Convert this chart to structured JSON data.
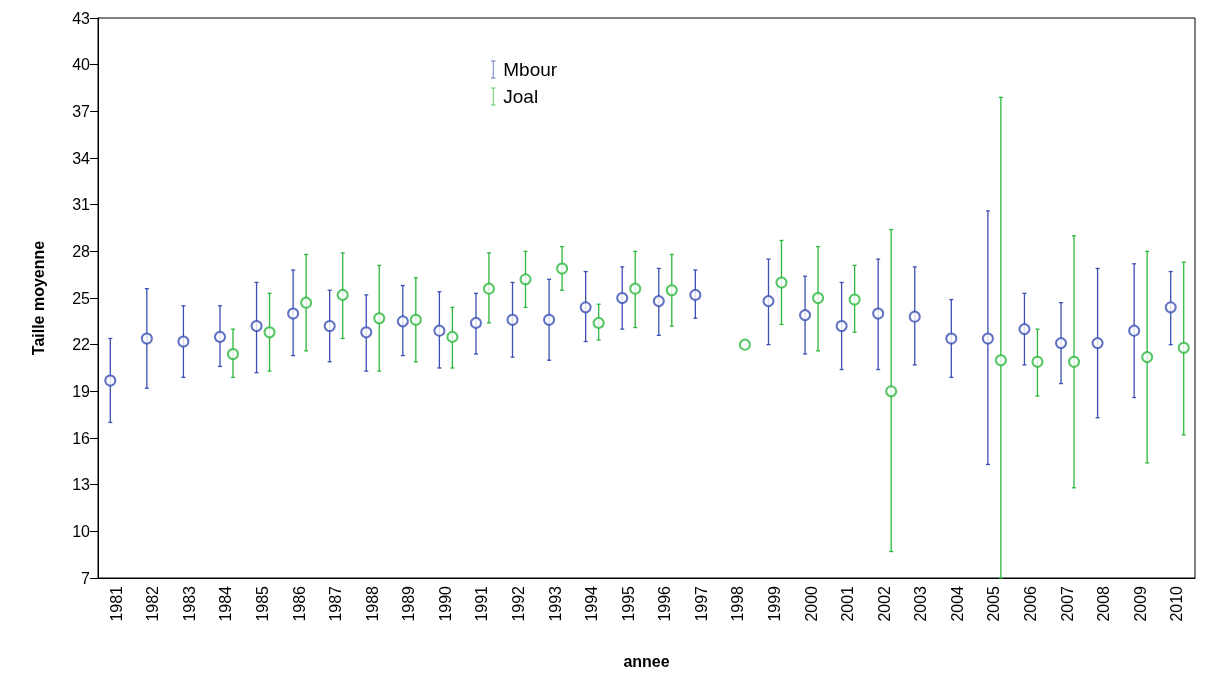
{
  "chart_data": {
    "type": "scatter",
    "xlabel": "annee",
    "ylabel": "Taille moyenne",
    "categories": [
      "1981",
      "1982",
      "1983",
      "1984",
      "1985",
      "1986",
      "1987",
      "1988",
      "1989",
      "1990",
      "1991",
      "1992",
      "1993",
      "1994",
      "1995",
      "1996",
      "1997",
      "1998",
      "1999",
      "2000",
      "2001",
      "2002",
      "2003",
      "2004",
      "2005",
      "2006",
      "2007",
      "2008",
      "2009",
      "2010"
    ],
    "series": [
      {
        "name": "Mbour",
        "color": "#3c50b4",
        "values": [
          19.7,
          22.4,
          22.2,
          22.5,
          23.2,
          24.0,
          23.2,
          22.8,
          23.5,
          22.9,
          23.4,
          23.6,
          23.6,
          24.4,
          25.0,
          24.8,
          25.2,
          null,
          24.8,
          23.9,
          23.2,
          24.0,
          23.8,
          22.4,
          22.4,
          23.0,
          22.1,
          22.1,
          22.9,
          24.4
        ],
        "errors": [
          [
            17.0,
            22.4
          ],
          [
            19.2,
            25.6
          ],
          [
            19.9,
            24.5
          ],
          [
            20.6,
            24.5
          ],
          [
            20.2,
            26.0
          ],
          [
            21.3,
            26.8
          ],
          [
            20.9,
            25.5
          ],
          [
            20.3,
            25.2
          ],
          [
            21.3,
            25.8
          ],
          [
            20.5,
            25.4
          ],
          [
            21.4,
            25.3
          ],
          [
            21.2,
            26.0
          ],
          [
            21.0,
            26.2
          ],
          [
            22.2,
            26.7
          ],
          [
            23.0,
            27.0
          ],
          [
            22.6,
            26.9
          ],
          [
            23.7,
            26.8
          ],
          null,
          [
            22.0,
            27.5
          ],
          [
            21.4,
            26.4
          ],
          [
            20.4,
            26.0
          ],
          [
            20.4,
            27.5
          ],
          [
            20.7,
            27.0
          ],
          [
            19.9,
            24.9
          ],
          [
            14.3,
            30.6
          ],
          [
            20.7,
            25.3
          ],
          [
            19.5,
            24.7
          ],
          [
            17.3,
            26.9
          ],
          [
            18.6,
            27.2
          ],
          [
            22.0,
            26.7
          ]
        ]
      },
      {
        "name": "Joal",
        "color": "#2db83d",
        "values": [
          null,
          null,
          null,
          21.4,
          22.8,
          24.7,
          25.2,
          23.7,
          23.6,
          22.5,
          25.6,
          26.2,
          26.9,
          23.4,
          25.6,
          25.5,
          null,
          22.0,
          26.0,
          25.0,
          24.9,
          19.0,
          null,
          null,
          21.0,
          20.9,
          20.9,
          null,
          21.2,
          21.8
        ],
        "errors": [
          null,
          null,
          null,
          [
            19.9,
            23.0
          ],
          [
            20.3,
            25.3
          ],
          [
            21.6,
            27.8
          ],
          [
            22.4,
            27.9
          ],
          [
            20.3,
            27.1
          ],
          [
            20.9,
            26.3
          ],
          [
            20.5,
            24.4
          ],
          [
            23.4,
            27.9
          ],
          [
            24.4,
            28.0
          ],
          [
            25.5,
            28.3
          ],
          [
            22.3,
            24.6
          ],
          [
            23.1,
            28.0
          ],
          [
            23.2,
            27.8
          ],
          null,
          null,
          [
            23.3,
            28.7
          ],
          [
            21.6,
            28.3
          ],
          [
            22.8,
            27.1
          ],
          [
            8.7,
            29.4
          ],
          null,
          null,
          [
            7,
            37.9
          ],
          [
            18.7,
            23.0
          ],
          [
            12.8,
            29.0
          ],
          null,
          [
            14.4,
            28.0
          ],
          [
            16.2,
            27.3
          ]
        ]
      }
    ],
    "ylim": [
      7,
      43
    ],
    "yticks": [
      7,
      10,
      13,
      16,
      19,
      22,
      25,
      28,
      31,
      34,
      37,
      40,
      43
    ],
    "grid": false,
    "legend": "top",
    "marker": "circle"
  }
}
